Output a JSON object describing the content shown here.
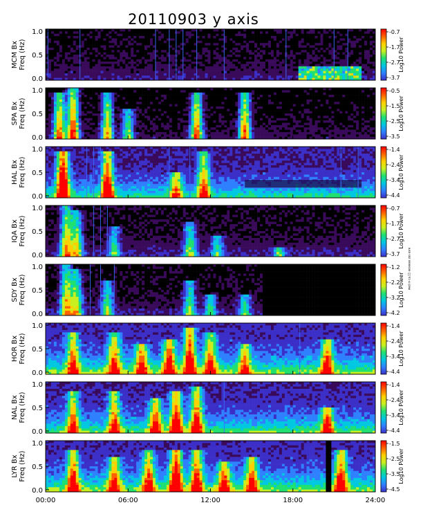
{
  "title": "20110903 y axis",
  "side_note": "wed in ca.11 eeseeee   zes esre",
  "colorbar_label": "Log10 Power",
  "colormap": [
    "#000000",
    "#3a0a5a",
    "#3b2fc8",
    "#2f80ff",
    "#00c8e0",
    "#20e070",
    "#c8f020",
    "#ffd000",
    "#ff6000",
    "#ff0000"
  ],
  "chart_data": [
    {
      "type": "heatmap",
      "ylabel": "MCM Bx",
      "yunit": "Freq (Hz)",
      "ylim": [
        0,
        1
      ],
      "yticks": [
        "1.0",
        "0.5",
        "0.0"
      ],
      "x_ticks": [
        "00:00",
        "06:00",
        "12:00",
        "18:00",
        "24:00"
      ],
      "colorbar_ticks": [
        "-0.7",
        "-1.7",
        "-2.7",
        "-3.7"
      ],
      "bursts": [],
      "noise_floor": 0.2,
      "data_gap": null,
      "dark_band": null,
      "late_band": {
        "from": "18:30",
        "to": "23:00",
        "height": 0.28,
        "intensity": 0.5
      },
      "streaks": [
        "00:10",
        "02:30",
        "08:00",
        "09:00",
        "09:30",
        "10:00",
        "11:00",
        "13:00",
        "17:30",
        "21:00",
        "22:00"
      ]
    },
    {
      "type": "heatmap",
      "ylabel": "SPA Bx",
      "yunit": "Freq (Hz)",
      "ylim": [
        0,
        1
      ],
      "yticks": [
        "1.0",
        "0.5",
        "0.0"
      ],
      "x_ticks": [
        "00:00",
        "06:00",
        "12:00",
        "18:00",
        "24:00"
      ],
      "colorbar_ticks": [
        "-0.5",
        "-1.5",
        "-2.5",
        "-3.5"
      ],
      "bursts": [
        [
          "01:00",
          0.9,
          0.8
        ],
        [
          "02:00",
          1.0,
          0.9
        ],
        [
          "04:30",
          0.9,
          0.7
        ],
        [
          "06:00",
          0.6,
          0.5
        ],
        [
          "11:00",
          0.9,
          0.8
        ],
        [
          "14:30",
          0.9,
          0.8
        ]
      ],
      "noise_floor": 0.15,
      "data_gap": null,
      "dark_band": null,
      "late_band": null,
      "streaks": []
    },
    {
      "type": "heatmap",
      "ylabel": "HAL Bx",
      "yunit": "Freq (Hz)",
      "ylim": [
        0,
        1
      ],
      "yticks": [
        "1.0",
        "0.5",
        "0.0"
      ],
      "x_ticks": [
        "00:00",
        "06:00",
        "12:00",
        "18:00",
        "24:00"
      ],
      "colorbar_ticks": [
        "-1.4",
        "-2.4",
        "-3.4",
        "-4.4"
      ],
      "bursts": [
        [
          "01:15",
          0.9,
          1.0
        ],
        [
          "04:30",
          0.9,
          0.8
        ],
        [
          "09:30",
          0.5,
          0.5
        ],
        [
          "11:30",
          0.9,
          0.6
        ]
      ],
      "noise_floor": 0.55,
      "data_gap": null,
      "dark_band": {
        "from": "14:30",
        "to": "23:00",
        "y": 0.2,
        "h": 0.15
      },
      "late_band": null,
      "streaks": [
        "03:00",
        "03:30",
        "04:00",
        "09:00",
        "10:30",
        "21:30",
        "22:45"
      ]
    },
    {
      "type": "heatmap",
      "ylabel": "IQA Bx",
      "yunit": "Freq (Hz)",
      "ylim": [
        0,
        1
      ],
      "yticks": [
        "1.0",
        "0.5",
        "0.0"
      ],
      "x_ticks": [
        "00:00",
        "06:00",
        "12:00",
        "18:00",
        "24:00"
      ],
      "colorbar_ticks": [
        "-0.7",
        "-1.7",
        "-2.7",
        "-3.7"
      ],
      "bursts": [
        [
          "01:30",
          1.0,
          0.7
        ],
        [
          "02:15",
          0.9,
          0.6
        ],
        [
          "05:00",
          0.6,
          0.4
        ],
        [
          "10:30",
          0.7,
          0.5
        ],
        [
          "12:30",
          0.4,
          0.4
        ],
        [
          "17:00",
          0.2,
          0.4
        ]
      ],
      "noise_floor": 0.22,
      "data_gap": null,
      "dark_band": null,
      "late_band": null,
      "streaks": [
        "03:30",
        "04:00",
        "04:30"
      ]
    },
    {
      "type": "heatmap",
      "ylabel": "SDY Bx",
      "yunit": "Freq (Hz)",
      "ylim": [
        0,
        1
      ],
      "yticks": [
        "1.0",
        "0.5",
        "0.0"
      ],
      "x_ticks": [
        "00:00",
        "06:00",
        "12:00",
        "18:00",
        "24:00"
      ],
      "colorbar_ticks": [
        "-1.2",
        "-2.2",
        "-3.2",
        "-4.2"
      ],
      "bursts": [
        [
          "01:30",
          1.0,
          0.7
        ],
        [
          "02:15",
          0.9,
          0.6
        ],
        [
          "04:30",
          0.7,
          0.5
        ],
        [
          "10:30",
          0.7,
          0.5
        ],
        [
          "12:00",
          0.4,
          0.4
        ],
        [
          "14:30",
          0.4,
          0.4
        ]
      ],
      "noise_floor": 0.2,
      "data_gap": {
        "from": "15:45",
        "to": "24:00"
      },
      "dark_band": null,
      "late_band": null,
      "streaks": [
        "03:15",
        "04:00",
        "05:00"
      ]
    },
    {
      "type": "heatmap",
      "ylabel": "HOR Bx",
      "yunit": "Freq (Hz)",
      "ylim": [
        0,
        1
      ],
      "yticks": [
        "1.0",
        "0.5",
        "0.0"
      ],
      "x_ticks": [
        "00:00",
        "06:00",
        "12:00",
        "18:00",
        "24:00"
      ],
      "colorbar_ticks": [
        "-1.4",
        "-2.4",
        "-3.4",
        "-4.4"
      ],
      "bursts": [
        [
          "02:00",
          0.8,
          0.6
        ],
        [
          "05:00",
          0.8,
          0.6
        ],
        [
          "07:00",
          0.6,
          0.6
        ],
        [
          "09:00",
          0.7,
          0.7
        ],
        [
          "10:30",
          0.9,
          0.8
        ],
        [
          "12:00",
          0.8,
          0.6
        ],
        [
          "14:30",
          0.6,
          0.5
        ],
        [
          "20:30",
          0.7,
          0.6
        ]
      ],
      "noise_floor": 0.65,
      "data_gap": null,
      "dark_band": null,
      "late_band": null,
      "streaks": [
        "18:30"
      ]
    },
    {
      "type": "heatmap",
      "ylabel": "NAL Bx",
      "yunit": "Freq (Hz)",
      "ylim": [
        0,
        1
      ],
      "yticks": [
        "1.0",
        "0.5",
        "0.0"
      ],
      "x_ticks": [
        "00:00",
        "06:00",
        "12:00",
        "18:00",
        "24:00"
      ],
      "colorbar_ticks": [
        "-1.4",
        "-2.4",
        "-3.4",
        "-4.4"
      ],
      "bursts": [
        [
          "02:00",
          0.8,
          0.6
        ],
        [
          "05:00",
          0.8,
          0.6
        ],
        [
          "08:00",
          0.7,
          0.6
        ],
        [
          "09:30",
          0.8,
          0.8
        ],
        [
          "11:00",
          0.9,
          0.7
        ],
        [
          "20:30",
          0.5,
          0.6
        ]
      ],
      "noise_floor": 0.6,
      "data_gap": null,
      "dark_band": null,
      "late_band": null,
      "streaks": [
        "13:00"
      ]
    },
    {
      "type": "heatmap",
      "ylabel": "LYR Bx",
      "yunit": "Freq (Hz)",
      "ylim": [
        0,
        1
      ],
      "yticks": [
        "1.0",
        "0.5",
        "0.0"
      ],
      "x_ticks": [
        "00:00",
        "06:00",
        "12:00",
        "18:00",
        "24:00"
      ],
      "colorbar_ticks": [
        "-1.5",
        "-2.5",
        "-3.5",
        "-4.5"
      ],
      "bursts": [
        [
          "02:00",
          0.8,
          0.7
        ],
        [
          "05:00",
          0.7,
          0.6
        ],
        [
          "07:30",
          0.8,
          0.6
        ],
        [
          "09:30",
          0.8,
          0.9
        ],
        [
          "11:00",
          0.8,
          0.7
        ],
        [
          "13:00",
          0.6,
          0.6
        ],
        [
          "15:00",
          0.7,
          0.6
        ],
        [
          "21:30",
          0.8,
          0.7
        ]
      ],
      "noise_floor": 0.65,
      "data_gap": {
        "from": "20:30",
        "to": "20:45"
      },
      "dark_band": null,
      "late_band": null,
      "streaks": []
    }
  ]
}
